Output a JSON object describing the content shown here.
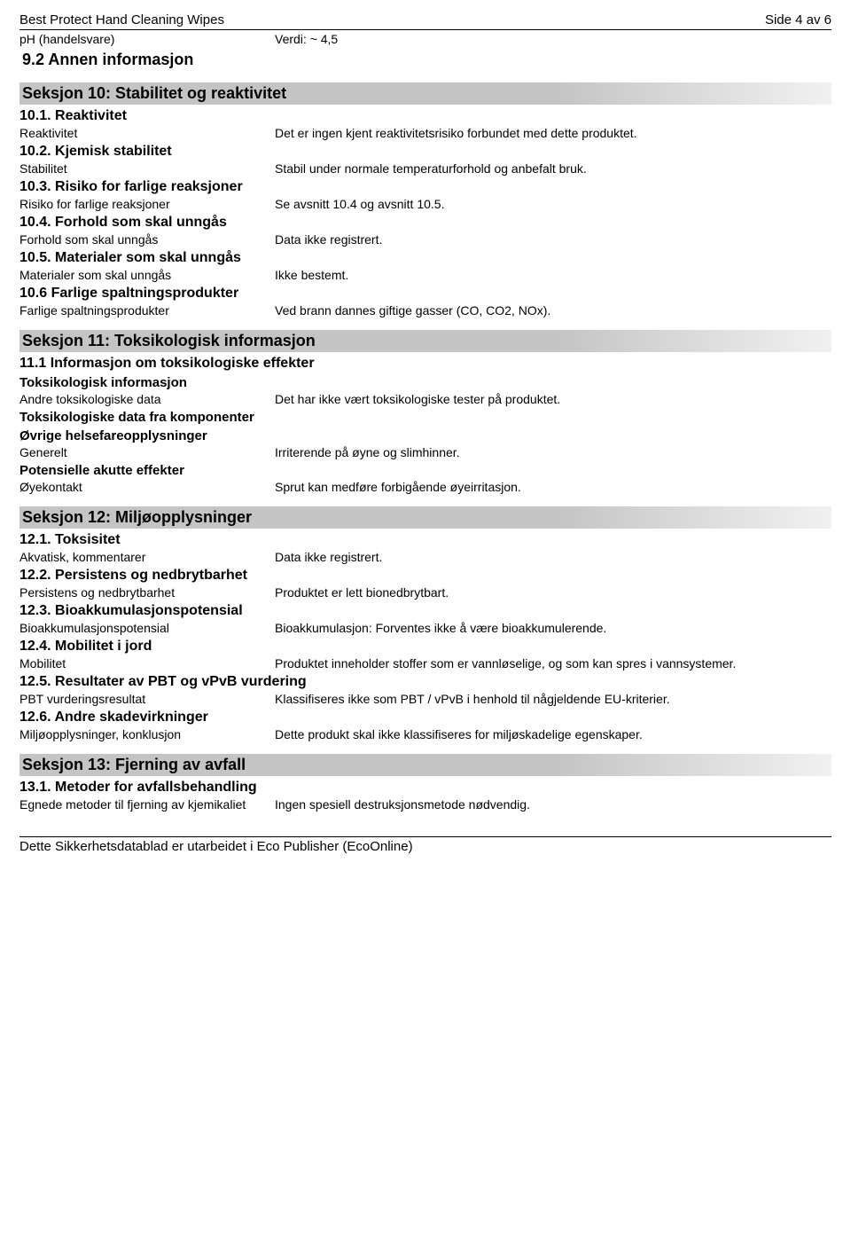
{
  "header": {
    "title": "Best Protect Hand Cleaning Wipes",
    "page": "Side 4 av 6"
  },
  "ph": {
    "label": "pH (handelsvare)",
    "value": "Verdi: ~ 4,5"
  },
  "sec92": "9.2 Annen informasjon",
  "sec10": {
    "title": "Seksjon 10: Stabilitet og reaktivitet",
    "s1": {
      "h": "10.1. Reaktivitet",
      "label": "Reaktivitet",
      "value": "Det er ingen kjent reaktivitetsrisiko forbundet med dette produktet."
    },
    "s2": {
      "h": "10.2. Kjemisk stabilitet",
      "label": "Stabilitet",
      "value": "Stabil under normale temperaturforhold og anbefalt bruk."
    },
    "s3": {
      "h": "10.3. Risiko for farlige reaksjoner",
      "label": "Risiko for farlige reaksjoner",
      "value": "Se avsnitt 10.4 og avsnitt 10.5."
    },
    "s4": {
      "h": "10.4. Forhold som skal unngås",
      "label": "Forhold som skal unngås",
      "value": "Data ikke registrert."
    },
    "s5": {
      "h": "10.5. Materialer som skal unngås",
      "label": "Materialer som skal unngås",
      "value": "Ikke bestemt."
    },
    "s6": {
      "h": "10.6 Farlige spaltningsprodukter",
      "label": "Farlige spaltningsprodukter",
      "value": "Ved brann dannes giftige gasser (CO, CO2, NOx)."
    }
  },
  "sec11": {
    "title": "Seksjon 11: Toksikologisk informasjon",
    "s1": {
      "h": "11.1 Informasjon om toksikologiske effekter"
    },
    "tox_info": "Toksikologisk informasjon",
    "andre": {
      "label": "Andre toksikologiske data",
      "value": "Det har ikke vært toksikologiske tester på produktet."
    },
    "tox_comp": "Toksikologiske data fra komponenter",
    "ovrig": "Øvrige helsefareopplysninger",
    "generelt": {
      "label": "Generelt",
      "value": "Irriterende på øyne og slimhinner."
    },
    "akutte": "Potensielle akutte effekter",
    "oye": {
      "label": "Øyekontakt",
      "value": "Sprut kan medføre forbigående øyeirritasjon."
    }
  },
  "sec12": {
    "title": "Seksjon 12: Miljøopplysninger",
    "s1": {
      "h": "12.1. Toksisitet",
      "label": "Akvatisk, kommentarer",
      "value": "Data ikke registrert."
    },
    "s2": {
      "h": "12.2. Persistens og nedbrytbarhet",
      "label": "Persistens og nedbrytbarhet",
      "value": "Produktet er lett bionedbrytbart."
    },
    "s3": {
      "h": "12.3. Bioakkumulasjonspotensial",
      "label": "Bioakkumulasjonspotensial",
      "value": "Bioakkumulasjon: Forventes ikke å være bioakkumulerende."
    },
    "s4": {
      "h": "12.4. Mobilitet i jord",
      "label": "Mobilitet",
      "value": "Produktet inneholder stoffer som er vannløselige, og som kan spres i vannsystemer."
    },
    "s5": {
      "h": "12.5. Resultater av PBT og vPvB vurdering",
      "label": "PBT vurderingsresultat",
      "value": "Klassifiseres ikke som PBT / vPvB i henhold til någjeldende EU-kriterier."
    },
    "s6": {
      "h": "12.6. Andre skadevirkninger",
      "label": "Miljøopplysninger, konklusjon",
      "value": "Dette produkt skal ikke klassifiseres for miljøskadelige egenskaper."
    }
  },
  "sec13": {
    "title": "Seksjon 13: Fjerning av avfall",
    "s1": {
      "h": "13.1. Metoder for avfallsbehandling",
      "label": "Egnede metoder til fjerning av kjemikaliet",
      "value": "Ingen spesiell destruksjonsmetode nødvendig."
    }
  },
  "footer": "Dette Sikkerhetsdatablad er utarbeidet i Eco Publisher (EcoOnline)"
}
